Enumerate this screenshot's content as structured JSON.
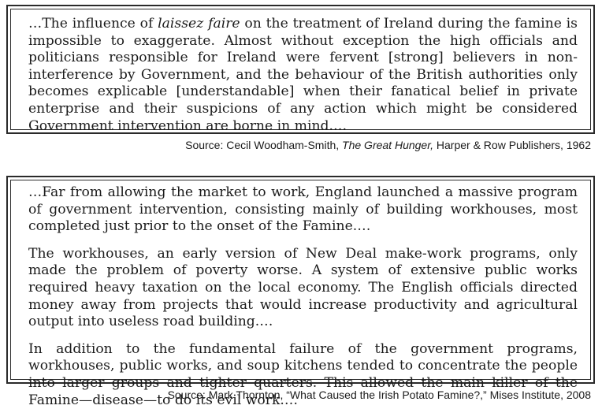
{
  "source1": {
    "quote_pre": "…The influence of ",
    "quote_italic": "laissez faire",
    "quote_post": " on the treatment of Ireland during the famine is impossible to exaggerate. Almost without exception the high officials and politicians responsible for Ireland were fervent [strong] believers in non-interference by Government, and the behaviour of the British authorities only becomes explicable [understandable] when their fanatical belief in private enterprise and their suspicions of any action which might be considered Government intervention are borne in mind.…",
    "citation_pre": "Source: Cecil Woodham-Smith, ",
    "citation_title": "The Great Hunger,",
    "citation_post": " Harper & Row Publishers, 1962"
  },
  "source2": {
    "paragraphs": [
      "…Far from allowing the market to work, England launched a massive program of government intervention, consisting mainly of building workhouses, most completed just prior to the onset of the Famine.…",
      "The workhouses, an early version of New Deal make-work programs, only made the problem of poverty worse. A system of extensive public works required heavy taxation on the local economy. The English officials directed money away from projects that would increase productivity and agricultural output into useless road building.…",
      "In addition to the fundamental failure of the government programs, workhouses, public works, and soup kitchens tended to concentrate the people into larger groups and tighter quarters. This allowed the main killer of the Famine—disease—to do its evil work.…"
    ],
    "citation": "Source: Mark Thornton, “What Caused the Irish Potato Famine?,” Mises Institute, 2008"
  }
}
